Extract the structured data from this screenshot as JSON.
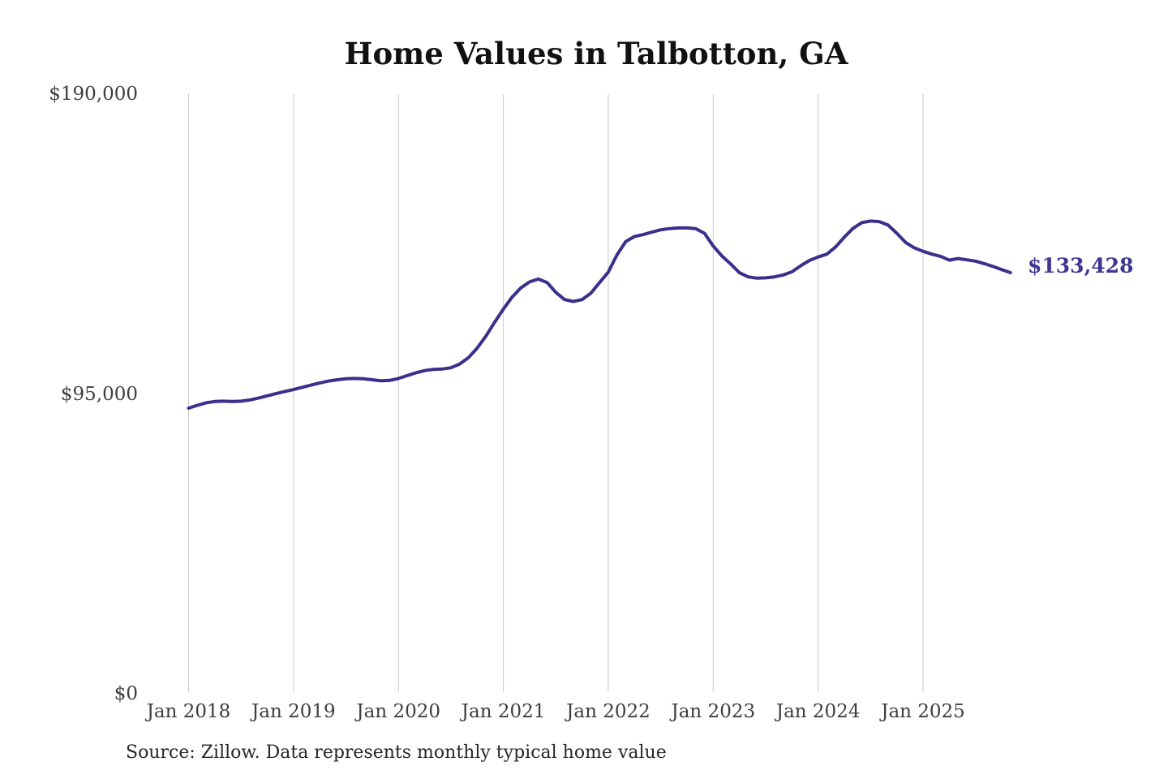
{
  "title": "Home Values in Talbotton, GA",
  "source": "Source: Zillow. Data represents monthly typical home value",
  "chart_data": {
    "type": "line",
    "title": "Home Values in Talbotton, GA",
    "series_name": "Monthly typical home value",
    "start_month": "2018-01",
    "frequency": "monthly",
    "values": [
      90500,
      91400,
      92200,
      92600,
      92700,
      92600,
      92700,
      93100,
      93700,
      94400,
      95100,
      95800,
      96400,
      97100,
      97800,
      98500,
      99100,
      99500,
      99800,
      99900,
      99800,
      99500,
      99200,
      99300,
      99900,
      100800,
      101700,
      102400,
      102800,
      102900,
      103300,
      104500,
      106500,
      109500,
      113300,
      117700,
      121900,
      125700,
      128600,
      130500,
      131400,
      130300,
      127200,
      124900,
      124300,
      124900,
      126900,
      130300,
      133600,
      139100,
      143300,
      144900,
      145500,
      146300,
      147000,
      147400,
      147600,
      147600,
      147400,
      145900,
      141900,
      138700,
      136200,
      133400,
      132100,
      131700,
      131800,
      132100,
      132700,
      133700,
      135600,
      137300,
      138400,
      139300,
      141600,
      144700,
      147500,
      149300,
      149800,
      149600,
      148500,
      145900,
      143000,
      141300,
      140200,
      139300,
      138600,
      137400,
      137900,
      137500,
      137100,
      136300,
      135400,
      134400,
      133428
    ],
    "x_tick_labels": [
      "Jan 2018",
      "Jan 2019",
      "Jan 2020",
      "Jan 2021",
      "Jan 2022",
      "Jan 2023",
      "Jan 2024",
      "Jan 2025"
    ],
    "y_ticks": [
      {
        "label": "$0",
        "value": 0
      },
      {
        "label": "$95,000",
        "value": 95000
      },
      {
        "label": "$190,000",
        "value": 190000
      }
    ],
    "ylim": [
      0,
      190000
    ],
    "grid": "vertical-only",
    "legend": "none",
    "latest_value": 133428,
    "end_label": "$133,428",
    "line_color": "#37318c",
    "grid_color": "#c9c9c9"
  }
}
